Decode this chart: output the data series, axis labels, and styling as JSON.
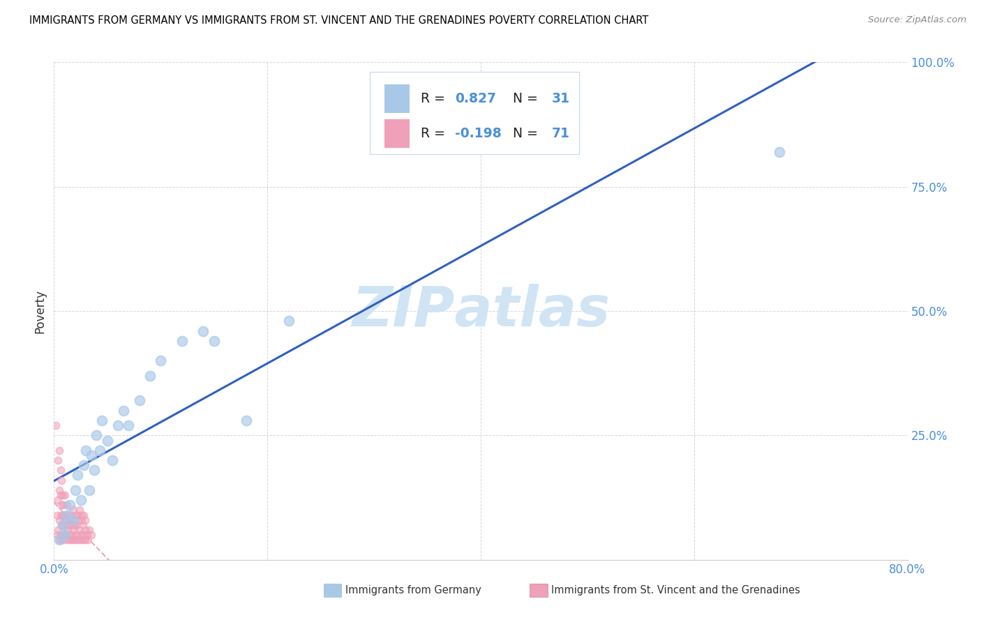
{
  "title": "IMMIGRANTS FROM GERMANY VS IMMIGRANTS FROM ST. VINCENT AND THE GRENADINES POVERTY CORRELATION CHART",
  "source": "Source: ZipAtlas.com",
  "ylabel": "Poverty",
  "xlim": [
    0,
    0.8
  ],
  "ylim": [
    0,
    1.0
  ],
  "r_germany": 0.827,
  "n_germany": 31,
  "r_stvincent": -0.198,
  "n_stvincent": 71,
  "color_germany": "#a8c8e8",
  "color_stvincent": "#f0a0b8",
  "trendline_germany_color": "#3060c0",
  "trendline_stvincent_color": "#e8a0b8",
  "watermark_color": "#d0e4f4",
  "germany_scatter": [
    [
      0.005,
      0.04
    ],
    [
      0.008,
      0.07
    ],
    [
      0.01,
      0.05
    ],
    [
      0.012,
      0.09
    ],
    [
      0.015,
      0.11
    ],
    [
      0.018,
      0.08
    ],
    [
      0.02,
      0.14
    ],
    [
      0.022,
      0.17
    ],
    [
      0.025,
      0.12
    ],
    [
      0.028,
      0.19
    ],
    [
      0.03,
      0.22
    ],
    [
      0.033,
      0.14
    ],
    [
      0.035,
      0.21
    ],
    [
      0.038,
      0.18
    ],
    [
      0.04,
      0.25
    ],
    [
      0.043,
      0.22
    ],
    [
      0.045,
      0.28
    ],
    [
      0.05,
      0.24
    ],
    [
      0.055,
      0.2
    ],
    [
      0.06,
      0.27
    ],
    [
      0.065,
      0.3
    ],
    [
      0.07,
      0.27
    ],
    [
      0.08,
      0.32
    ],
    [
      0.09,
      0.37
    ],
    [
      0.1,
      0.4
    ],
    [
      0.12,
      0.44
    ],
    [
      0.14,
      0.46
    ],
    [
      0.15,
      0.44
    ],
    [
      0.18,
      0.28
    ],
    [
      0.22,
      0.48
    ],
    [
      0.68,
      0.82
    ]
  ],
  "stvincent_scatter": [
    [
      0.002,
      0.27
    ],
    [
      0.003,
      0.05
    ],
    [
      0.003,
      0.09
    ],
    [
      0.004,
      0.06
    ],
    [
      0.004,
      0.12
    ],
    [
      0.004,
      0.2
    ],
    [
      0.005,
      0.04
    ],
    [
      0.005,
      0.08
    ],
    [
      0.005,
      0.14
    ],
    [
      0.005,
      0.22
    ],
    [
      0.006,
      0.05
    ],
    [
      0.006,
      0.09
    ],
    [
      0.006,
      0.13
    ],
    [
      0.006,
      0.18
    ],
    [
      0.007,
      0.04
    ],
    [
      0.007,
      0.07
    ],
    [
      0.007,
      0.11
    ],
    [
      0.007,
      0.16
    ],
    [
      0.008,
      0.05
    ],
    [
      0.008,
      0.09
    ],
    [
      0.008,
      0.13
    ],
    [
      0.009,
      0.04
    ],
    [
      0.009,
      0.07
    ],
    [
      0.009,
      0.11
    ],
    [
      0.01,
      0.05
    ],
    [
      0.01,
      0.09
    ],
    [
      0.01,
      0.13
    ],
    [
      0.011,
      0.05
    ],
    [
      0.011,
      0.08
    ],
    [
      0.012,
      0.04
    ],
    [
      0.012,
      0.07
    ],
    [
      0.012,
      0.11
    ],
    [
      0.013,
      0.06
    ],
    [
      0.013,
      0.09
    ],
    [
      0.014,
      0.05
    ],
    [
      0.014,
      0.08
    ],
    [
      0.015,
      0.04
    ],
    [
      0.015,
      0.07
    ],
    [
      0.016,
      0.05
    ],
    [
      0.016,
      0.09
    ],
    [
      0.017,
      0.04
    ],
    [
      0.017,
      0.08
    ],
    [
      0.018,
      0.06
    ],
    [
      0.018,
      0.1
    ],
    [
      0.019,
      0.04
    ],
    [
      0.019,
      0.07
    ],
    [
      0.02,
      0.05
    ],
    [
      0.02,
      0.09
    ],
    [
      0.021,
      0.04
    ],
    [
      0.021,
      0.07
    ],
    [
      0.022,
      0.05
    ],
    [
      0.022,
      0.09
    ],
    [
      0.023,
      0.04
    ],
    [
      0.023,
      0.08
    ],
    [
      0.024,
      0.06
    ],
    [
      0.024,
      0.1
    ],
    [
      0.025,
      0.04
    ],
    [
      0.025,
      0.08
    ],
    [
      0.026,
      0.05
    ],
    [
      0.026,
      0.09
    ],
    [
      0.027,
      0.04
    ],
    [
      0.027,
      0.07
    ],
    [
      0.028,
      0.05
    ],
    [
      0.028,
      0.09
    ],
    [
      0.029,
      0.04
    ],
    [
      0.029,
      0.08
    ],
    [
      0.03,
      0.06
    ],
    [
      0.031,
      0.05
    ],
    [
      0.032,
      0.04
    ],
    [
      0.033,
      0.06
    ],
    [
      0.035,
      0.05
    ]
  ]
}
